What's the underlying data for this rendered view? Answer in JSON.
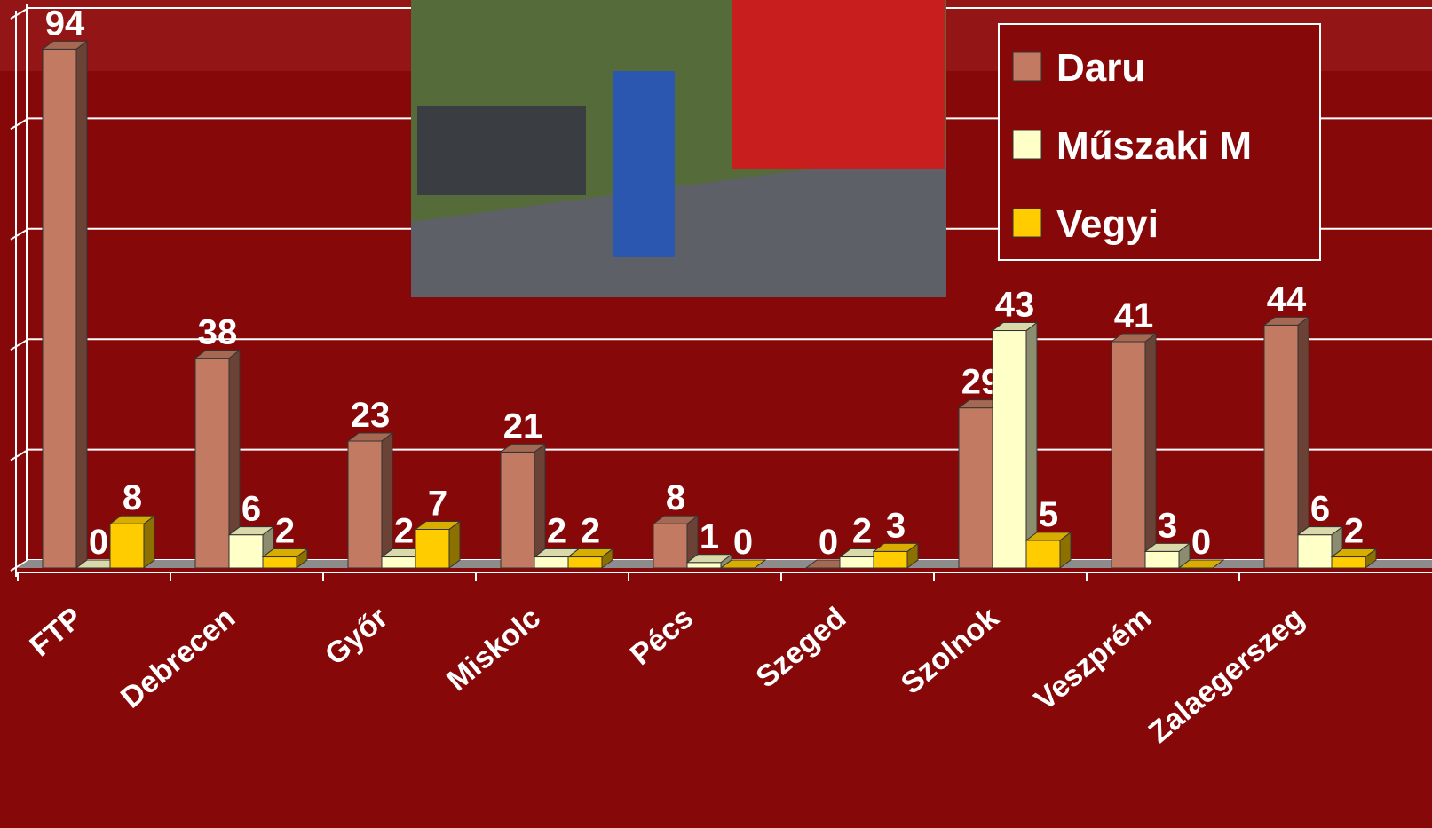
{
  "chart_data": {
    "type": "bar3d",
    "categories": [
      "FTP",
      "Debrecen",
      "Győr",
      "Miskolc",
      "Pécs",
      "Szeged",
      "Szolnok",
      "Veszprém",
      "Zalaegerszeg"
    ],
    "series": [
      {
        "name": "Daru",
        "color": "#c27a62",
        "values": [
          94,
          38,
          23,
          21,
          8,
          0,
          29,
          41,
          44
        ]
      },
      {
        "name": "Műszaki M",
        "color": "#ffffc8",
        "values": [
          0,
          6,
          2,
          2,
          1,
          2,
          43,
          3,
          6
        ]
      },
      {
        "name": "Vegyi",
        "color": "#ffcc00",
        "values": [
          8,
          2,
          7,
          2,
          0,
          3,
          5,
          0,
          2
        ]
      }
    ],
    "ylim": [
      0,
      100
    ],
    "yticks": [
      0,
      20,
      40,
      60,
      80,
      100
    ],
    "grid": true,
    "legend": "top-right"
  }
}
